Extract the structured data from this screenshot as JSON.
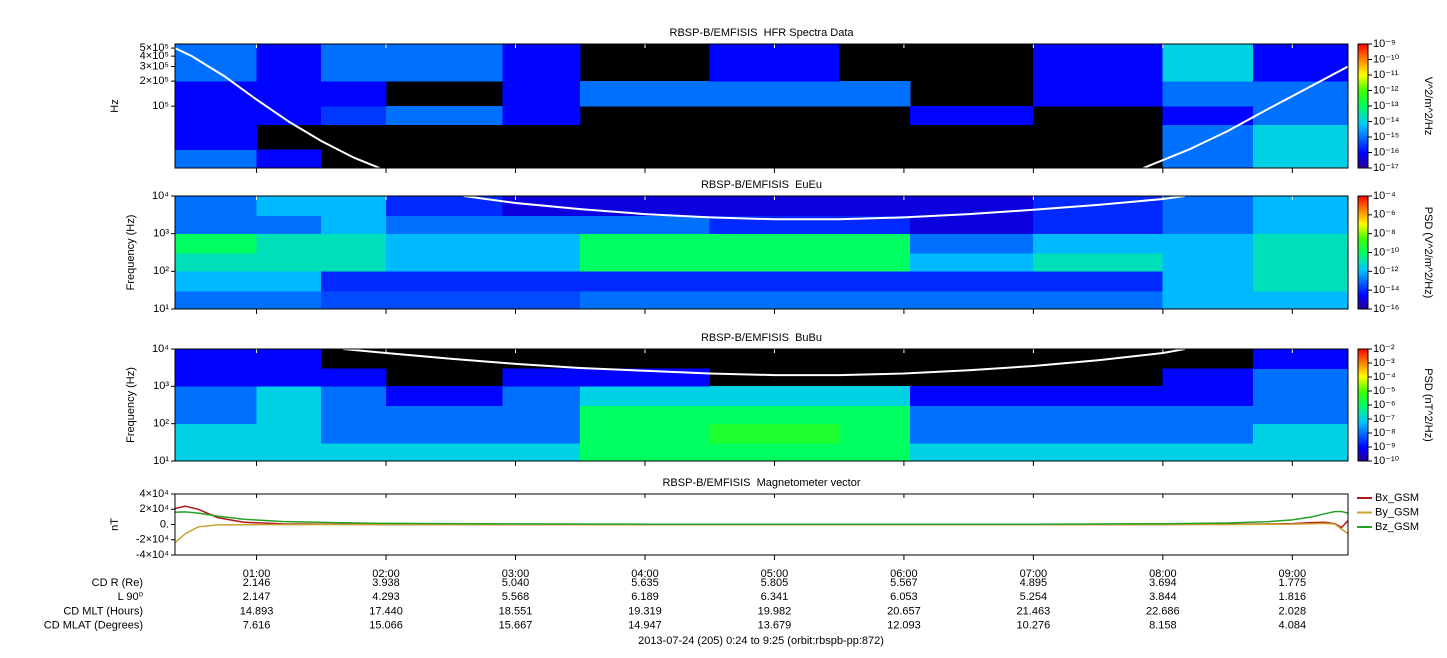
{
  "chart_data": [
    {
      "type": "spectrogram",
      "title": "RBSP-B/EMFISIS  HFR Spectra Data",
      "ylabel": "Hz",
      "ylog": true,
      "ylim": [
        18000,
        560000
      ],
      "yticks": [
        {
          "value": 500000,
          "label": "5×10⁵"
        },
        {
          "value": 400000,
          "label": "4×10⁵"
        },
        {
          "value": 300000,
          "label": "3×10⁵"
        },
        {
          "value": 200000,
          "label": "2×10⁵"
        },
        {
          "value": 100000,
          "label": "10⁵"
        }
      ],
      "xlim": [
        0.37,
        9.43
      ],
      "background": "#000000",
      "colormap": "rainbow",
      "time_edges": [
        0.37,
        1,
        1.5,
        2,
        2.9,
        3.5,
        4.5,
        5.5,
        6.05,
        7,
        8,
        8.7,
        9.43
      ],
      "freq_edges": [
        18000,
        30000,
        60000,
        100000,
        200000,
        560000
      ],
      "z": [
        [
          1e-15,
          1e-16,
          null,
          null,
          null,
          null,
          null,
          null,
          null,
          null,
          1e-15,
          1e-14
        ],
        [
          1e-16,
          null,
          null,
          null,
          null,
          null,
          null,
          null,
          null,
          null,
          1e-15,
          1e-14
        ],
        [
          1e-16,
          1e-16,
          3e-16,
          1e-15,
          1e-16,
          null,
          null,
          null,
          1e-16,
          null,
          1e-16,
          1e-15
        ],
        [
          1e-16,
          1e-16,
          1e-16,
          null,
          1e-16,
          1e-15,
          1e-15,
          1e-15,
          null,
          1e-16,
          1e-15,
          1e-15
        ],
        [
          1e-15,
          1e-16,
          1e-15,
          1e-15,
          1e-16,
          null,
          1e-16,
          null,
          null,
          1e-16,
          1e-14,
          1e-16
        ]
      ],
      "zlim": [
        1e-17,
        1e-09
      ],
      "zlabel": "V^2/m^2/Hz",
      "zticks": [
        {
          "value": 1e-09,
          "label": "10⁻⁹"
        },
        {
          "value": 1e-10,
          "label": "10⁻¹⁰"
        },
        {
          "value": 1e-11,
          "label": "10⁻¹¹"
        },
        {
          "value": 1e-12,
          "label": "10⁻¹²"
        },
        {
          "value": 1e-13,
          "label": "10⁻¹³"
        },
        {
          "value": 1e-14,
          "label": "10⁻¹⁴"
        },
        {
          "value": 1e-15,
          "label": "10⁻¹⁵"
        },
        {
          "value": 1e-16,
          "label": "10⁻¹⁶"
        },
        {
          "value": 1e-17,
          "label": "10⁻¹⁷"
        }
      ],
      "series": [
        {
          "color": "#ffffff",
          "x": [
            0.37,
            0.5,
            0.75,
            1,
            1.25,
            1.5,
            1.75,
            1.95,
            5,
            7.85,
            8.2,
            8.5,
            8.8,
            9.1,
            9.43
          ],
          "values": [
            500000,
            400000,
            230000,
            120000,
            65000,
            38000,
            24000,
            18000,
            null,
            18000,
            30000,
            50000,
            90000,
            160000,
            300000
          ]
        }
      ]
    },
    {
      "type": "spectrogram",
      "title": "RBSP-B/EMFISIS  EuEu",
      "ylabel": "Frequency (Hz)",
      "ylog": true,
      "ylim": [
        10,
        10000
      ],
      "yticks": [
        {
          "value": 10,
          "label": "10¹"
        },
        {
          "value": 100,
          "label": "10²"
        },
        {
          "value": 1000,
          "label": "10³"
        },
        {
          "value": 10000,
          "label": "10⁴"
        }
      ],
      "xlim": [
        0.37,
        9.43
      ],
      "background": "#0000c8",
      "colormap": "rainbow",
      "time_edges": [
        0.37,
        1,
        1.5,
        2,
        2.9,
        3.5,
        4.5,
        5.5,
        6.05,
        7,
        8,
        8.7,
        9.43
      ],
      "freq_edges": [
        10,
        30,
        100,
        300,
        1000,
        3000,
        10000
      ],
      "z": [
        [
          1e-13,
          1e-13,
          3e-14,
          3e-14,
          3e-14,
          1e-13,
          1e-13,
          1e-13,
          1e-13,
          1e-13,
          1e-12,
          1e-12
        ],
        [
          1e-12,
          1e-12,
          1e-14,
          1e-14,
          1e-14,
          1e-14,
          1e-14,
          1e-14,
          1e-14,
          1e-14,
          1e-12,
          1e-11
        ],
        [
          1e-11,
          1e-11,
          1e-11,
          1e-12,
          1e-12,
          1e-10,
          1e-10,
          1e-10,
          1e-12,
          1e-11,
          1e-12,
          1e-11
        ],
        [
          1e-10,
          1e-11,
          1e-11,
          1e-12,
          1e-12,
          1e-10,
          1e-10,
          1e-10,
          1e-13,
          1e-12,
          1e-12,
          1e-11
        ],
        [
          1e-13,
          1e-13,
          1e-12,
          1e-13,
          1e-13,
          1e-13,
          1e-14,
          1e-14,
          1e-15,
          1e-14,
          1e-13,
          1e-12
        ],
        [
          1e-13,
          1e-12,
          1e-12,
          1e-14,
          1e-15,
          1e-15,
          1e-15,
          1e-15,
          1e-15,
          1e-14,
          1e-13,
          1e-12
        ]
      ],
      "zlim": [
        1e-16,
        0.0001
      ],
      "zlabel": "PSD (V^2/m^2/Hz)",
      "zticks": [
        {
          "value": 0.0001,
          "label": "10⁻⁴"
        },
        {
          "value": 1e-06,
          "label": "10⁻⁶"
        },
        {
          "value": 1e-08,
          "label": "10⁻⁸"
        },
        {
          "value": 1e-10,
          "label": "10⁻¹⁰"
        },
        {
          "value": 1e-12,
          "label": "10⁻¹²"
        },
        {
          "value": 1e-14,
          "label": "10⁻¹⁴"
        },
        {
          "value": 1e-16,
          "label": "10⁻¹⁶"
        }
      ],
      "series": [
        {
          "color": "#ffffff",
          "x": [
            2.6,
            3,
            3.5,
            4,
            4.5,
            5,
            5.5,
            6,
            6.5,
            7,
            7.5,
            8,
            8.17
          ],
          "values": [
            10000,
            6500,
            4500,
            3300,
            2700,
            2400,
            2400,
            2700,
            3300,
            4300,
            5800,
            8300,
            10000
          ]
        }
      ]
    },
    {
      "type": "spectrogram",
      "title": "RBSP-B/EMFISIS  BuBu",
      "ylabel": "Frequency (Hz)",
      "ylog": true,
      "ylim": [
        10,
        10000
      ],
      "yticks": [
        {
          "value": 10,
          "label": "10¹"
        },
        {
          "value": 100,
          "label": "10²"
        },
        {
          "value": 1000,
          "label": "10³"
        },
        {
          "value": 10000,
          "label": "10⁴"
        }
      ],
      "xlim": [
        0.37,
        9.43
      ],
      "background": "#000000",
      "colormap": "rainbow",
      "time_edges": [
        0.37,
        1,
        1.5,
        2,
        2.9,
        3.5,
        4.5,
        5.5,
        6.05,
        7,
        8,
        8.7,
        9.43
      ],
      "freq_edges": [
        10,
        30,
        100,
        300,
        1000,
        3000,
        10000
      ],
      "z": [
        [
          1e-07,
          1e-07,
          1e-07,
          1e-07,
          1e-07,
          1e-06,
          1e-06,
          1e-06,
          1e-07,
          1e-07,
          1e-07,
          1e-07
        ],
        [
          1e-07,
          1e-07,
          1e-08,
          1e-08,
          1e-08,
          1e-06,
          3e-06,
          1e-06,
          1e-08,
          1e-08,
          1e-08,
          1e-07
        ],
        [
          1e-08,
          1e-07,
          1e-08,
          1e-08,
          1e-08,
          1e-06,
          1e-06,
          1e-06,
          1e-08,
          1e-08,
          1e-08,
          1e-08
        ],
        [
          1e-08,
          1e-07,
          1e-08,
          1e-09,
          1e-08,
          1e-07,
          1e-07,
          1e-07,
          1e-09,
          1e-09,
          1e-09,
          1e-08
        ],
        [
          1e-09,
          1e-09,
          1e-09,
          null,
          1e-09,
          1e-09,
          null,
          null,
          null,
          null,
          1e-09,
          1e-08
        ],
        [
          1e-09,
          1e-09,
          null,
          null,
          null,
          null,
          null,
          null,
          null,
          null,
          null,
          1e-09
        ]
      ],
      "zlim": [
        1e-10,
        0.01
      ],
      "zlabel": "PSD (nT^2/Hz)",
      "zticks": [
        {
          "value": 0.01,
          "label": "10⁻²"
        },
        {
          "value": 0.001,
          "label": "10⁻³"
        },
        {
          "value": 0.0001,
          "label": "10⁻⁴"
        },
        {
          "value": 1e-05,
          "label": "10⁻⁵"
        },
        {
          "value": 1e-06,
          "label": "10⁻⁶"
        },
        {
          "value": 1e-07,
          "label": "10⁻⁷"
        },
        {
          "value": 1e-08,
          "label": "10⁻⁸"
        },
        {
          "value": 1e-09,
          "label": "10⁻⁹"
        },
        {
          "value": 1e-10,
          "label": "10⁻¹⁰"
        }
      ],
      "series": [
        {
          "color": "#ffffff",
          "x": [
            1.67,
            2,
            2.5,
            3,
            3.5,
            4,
            4.5,
            5,
            5.5,
            6,
            6.5,
            7,
            7.5,
            8,
            8.17
          ],
          "values": [
            10000,
            7800,
            5500,
            4000,
            3100,
            2600,
            2200,
            2000,
            2000,
            2200,
            2700,
            3500,
            5000,
            7800,
            10000
          ]
        }
      ]
    },
    {
      "type": "line",
      "title": "RBSP-B/EMFISIS  Magnetometer vector",
      "ylabel": "nT",
      "ylim": [
        -40000,
        40000
      ],
      "yticks": [
        {
          "value": 40000,
          "label": "4×10⁴"
        },
        {
          "value": 20000,
          "label": "2×10⁴"
        },
        {
          "value": 0,
          "label": "0."
        },
        {
          "value": -20000,
          "label": "-2×10⁴"
        },
        {
          "value": -40000,
          "label": "-4×10⁴"
        }
      ],
      "xlim": [
        0.37,
        9.43
      ],
      "xticks": [
        {
          "value": 1,
          "label": "01:00"
        },
        {
          "value": 2,
          "label": "02:00"
        },
        {
          "value": 3,
          "label": "03:00"
        },
        {
          "value": 4,
          "label": "04:00"
        },
        {
          "value": 5,
          "label": "05:00"
        },
        {
          "value": 6,
          "label": "06:00"
        },
        {
          "value": 7,
          "label": "07:00"
        },
        {
          "value": 8,
          "label": "08:00"
        },
        {
          "value": 9,
          "label": "09:00"
        }
      ],
      "legend": "right",
      "series": [
        {
          "name": "Bx_GSM",
          "color": "#b01818",
          "x": [
            0.37,
            0.45,
            0.55,
            0.7,
            0.9,
            1.2,
            1.6,
            2,
            3,
            4,
            5,
            6,
            7,
            8,
            8.5,
            8.8,
            9.0,
            9.15,
            9.25,
            9.33,
            9.38,
            9.43
          ],
          "values": [
            21000,
            24000,
            20000,
            9000,
            3000,
            800,
            200,
            0,
            0,
            0,
            0,
            0,
            0,
            0,
            200,
            600,
            1200,
            2500,
            3000,
            1000,
            -4000,
            5000
          ]
        },
        {
          "name": "By_GSM",
          "color": "#c8a030",
          "x": [
            0.37,
            0.45,
            0.55,
            0.7,
            0.9,
            1.2,
            1.6,
            2,
            3,
            4,
            5,
            6,
            7,
            8,
            8.5,
            8.8,
            9.0,
            9.15,
            9.25,
            9.33,
            9.38,
            9.43
          ],
          "values": [
            -24000,
            -12000,
            -3000,
            -500,
            -200,
            -100,
            0,
            0,
            0,
            0,
            0,
            0,
            0,
            0,
            0,
            200,
            500,
            1000,
            1500,
            500,
            -6000,
            -12000
          ]
        },
        {
          "name": "Bz_GSM",
          "color": "#28a028",
          "x": [
            0.37,
            0.45,
            0.55,
            0.7,
            0.9,
            1.2,
            1.6,
            2,
            3,
            4,
            5,
            6,
            7,
            8,
            8.5,
            8.8,
            9.0,
            9.15,
            9.25,
            9.33,
            9.38,
            9.43
          ],
          "values": [
            16000,
            16500,
            15000,
            11000,
            7000,
            4000,
            2500,
            1500,
            800,
            400,
            200,
            200,
            400,
            1000,
            2000,
            3500,
            6000,
            10000,
            14000,
            17000,
            17000,
            15000
          ]
        }
      ]
    }
  ],
  "ephemeris": {
    "rows": [
      {
        "label": "CD R (Re)",
        "values": [
          "2.146",
          "3.938",
          "5.040",
          "5.635",
          "5.805",
          "5.567",
          "4.895",
          "3.694",
          "1.775"
        ]
      },
      {
        "label": "L 90⁰",
        "values": [
          "2.147",
          "4.293",
          "5.568",
          "6.189",
          "6.341",
          "6.053",
          "5.254",
          "3.844",
          "1.816"
        ]
      },
      {
        "label": "CD MLT (Hours)",
        "values": [
          "14.893",
          "17.440",
          "18.551",
          "19.319",
          "19.982",
          "20.657",
          "21.463",
          "22.686",
          "2.028"
        ]
      },
      {
        "label": "CD MLAT (Degrees)",
        "values": [
          "7.616",
          "15.066",
          "15.667",
          "14.947",
          "13.679",
          "12.093",
          "10.276",
          "8.158",
          "4.084"
        ]
      }
    ]
  },
  "footer": "2013-07-24 (205) 0:24 to 9:25 (orbit:rbspb-pp:872)"
}
